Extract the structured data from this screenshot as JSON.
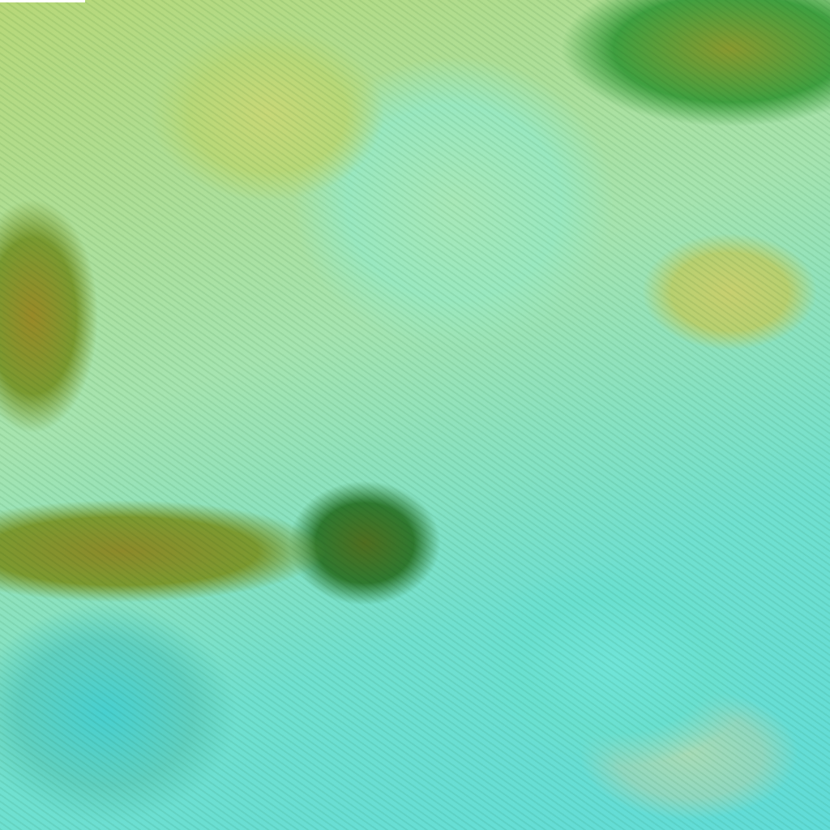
{
  "image": {
    "kind": "false-color satellite cloud imagery",
    "colors": {
      "clear_cloud": "#70e0d0",
      "low_cloud": "#b8d878",
      "land_brown": "#8e8a2a",
      "vegetation_green": "#2f7a30"
    }
  }
}
